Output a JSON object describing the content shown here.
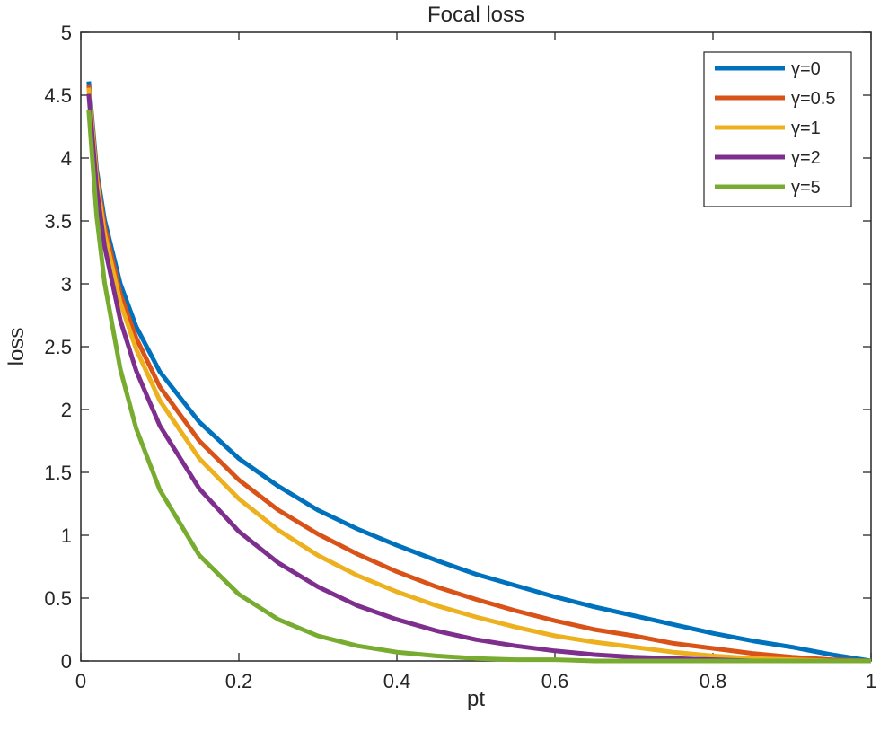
{
  "chart_data": {
    "type": "line",
    "title": "Focal loss",
    "xlabel": "pt",
    "ylabel": "loss",
    "xlim": [
      0,
      1
    ],
    "ylim": [
      0,
      5
    ],
    "x_ticks": [
      "0",
      "0.2",
      "0.4",
      "0.6",
      "0.8",
      "1"
    ],
    "y_ticks": [
      "0",
      "0.5",
      "1",
      "1.5",
      "2",
      "2.5",
      "3",
      "3.5",
      "4",
      "4.5",
      "5"
    ],
    "legend_position": "top-right",
    "x": [
      0.01,
      0.02,
      0.03,
      0.05,
      0.07,
      0.1,
      0.15,
      0.2,
      0.25,
      0.3,
      0.35,
      0.4,
      0.45,
      0.5,
      0.55,
      0.6,
      0.65,
      0.7,
      0.75,
      0.8,
      0.85,
      0.9,
      0.95,
      1.0
    ],
    "series": [
      {
        "name": "γ=0",
        "gamma": 0,
        "color": "#0072BD",
        "values": [
          4.61,
          3.91,
          3.51,
          3.0,
          2.66,
          2.3,
          1.9,
          1.61,
          1.39,
          1.2,
          1.05,
          0.92,
          0.8,
          0.69,
          0.6,
          0.51,
          0.43,
          0.36,
          0.29,
          0.22,
          0.16,
          0.11,
          0.05,
          0.0
        ]
      },
      {
        "name": "γ=0.5",
        "gamma": 0.5,
        "color": "#D95319",
        "values": [
          4.58,
          3.87,
          3.46,
          2.92,
          2.57,
          2.18,
          1.75,
          1.44,
          1.2,
          1.01,
          0.85,
          0.71,
          0.59,
          0.49,
          0.4,
          0.32,
          0.25,
          0.2,
          0.14,
          0.1,
          0.06,
          0.03,
          0.01,
          0.0
        ]
      },
      {
        "name": "γ=1",
        "gamma": 1,
        "color": "#EDB120",
        "values": [
          4.56,
          3.83,
          3.4,
          2.85,
          2.48,
          2.07,
          1.61,
          1.29,
          1.04,
          0.84,
          0.68,
          0.55,
          0.44,
          0.35,
          0.27,
          0.2,
          0.15,
          0.11,
          0.07,
          0.04,
          0.02,
          0.01,
          0.0,
          0.0
        ]
      },
      {
        "name": "γ=2",
        "gamma": 2,
        "color": "#7E2F8E",
        "values": [
          4.51,
          3.76,
          3.3,
          2.71,
          2.31,
          1.87,
          1.37,
          1.03,
          0.78,
          0.59,
          0.44,
          0.33,
          0.24,
          0.17,
          0.12,
          0.08,
          0.05,
          0.03,
          0.02,
          0.01,
          0.0,
          0.0,
          0.0,
          0.0
        ]
      },
      {
        "name": "γ=5",
        "gamma": 5,
        "color": "#77AC30",
        "values": [
          4.38,
          3.54,
          3.01,
          2.32,
          1.85,
          1.36,
          0.84,
          0.53,
          0.33,
          0.2,
          0.12,
          0.07,
          0.04,
          0.02,
          0.01,
          0.01,
          0.0,
          0.0,
          0.0,
          0.0,
          0.0,
          0.0,
          0.0,
          0.0
        ]
      }
    ]
  }
}
